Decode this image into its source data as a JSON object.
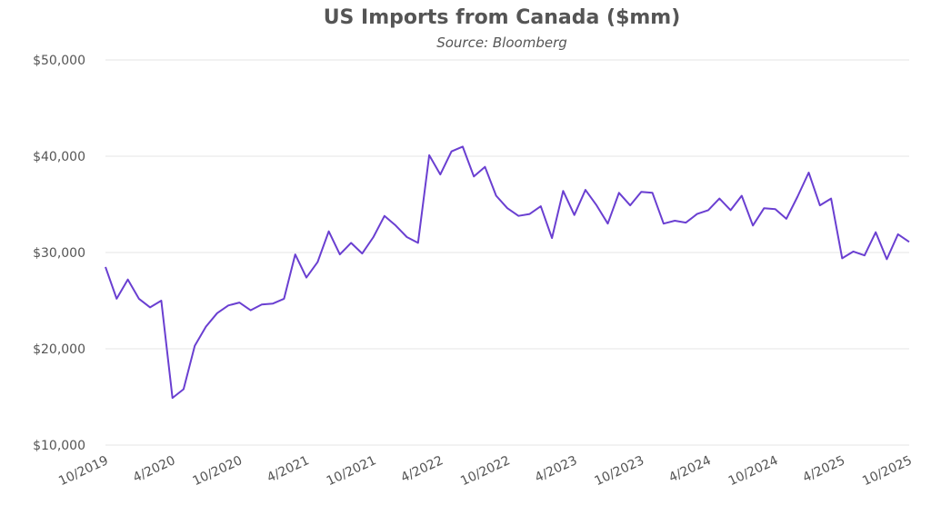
{
  "chart_data": {
    "type": "line",
    "title": "US Imports from Canada ($mm)",
    "subtitle": "Source: Bloomberg",
    "xlabel": "",
    "ylabel": "",
    "ylim": [
      10000,
      50000
    ],
    "yticks": [
      10000,
      20000,
      30000,
      40000,
      50000
    ],
    "ytick_labels": [
      "$10,000",
      "$20,000",
      "$30,000",
      "$40,000",
      "$50,000"
    ],
    "xtick_labels": [
      "10/2019",
      "4/2020",
      "10/2020",
      "4/2021",
      "10/2021",
      "4/2022",
      "10/2022",
      "4/2023",
      "10/2023",
      "4/2024",
      "10/2024",
      "4/2025",
      "10/2025"
    ],
    "grid": true,
    "line_color": "#6a3fd1",
    "x": [
      "2019-10",
      "2019-11",
      "2019-12",
      "2020-01",
      "2020-02",
      "2020-03",
      "2020-04",
      "2020-05",
      "2020-06",
      "2020-07",
      "2020-08",
      "2020-09",
      "2020-10",
      "2020-11",
      "2020-12",
      "2021-01",
      "2021-02",
      "2021-03",
      "2021-04",
      "2021-05",
      "2021-06",
      "2021-07",
      "2021-08",
      "2021-09",
      "2021-10",
      "2021-11",
      "2021-12",
      "2022-01",
      "2022-02",
      "2022-03",
      "2022-04",
      "2022-05",
      "2022-06",
      "2022-07",
      "2022-08",
      "2022-09",
      "2022-10",
      "2022-11",
      "2022-12",
      "2023-01",
      "2023-02",
      "2023-03",
      "2023-04",
      "2023-05",
      "2023-06",
      "2023-07",
      "2023-08",
      "2023-09",
      "2023-10",
      "2023-11",
      "2023-12",
      "2024-01",
      "2024-02",
      "2024-03",
      "2024-04",
      "2024-05",
      "2024-06",
      "2024-07",
      "2024-08",
      "2024-09",
      "2024-10",
      "2024-11",
      "2024-12",
      "2025-01",
      "2025-02",
      "2025-03",
      "2025-04",
      "2025-05",
      "2025-06",
      "2025-07",
      "2025-08",
      "2025-09",
      "2025-10"
    ],
    "values": [
      28500,
      25200,
      27200,
      25200,
      24300,
      25000,
      14900,
      15800,
      20300,
      22300,
      23700,
      24500,
      24800,
      24000,
      24600,
      24700,
      25200,
      29800,
      27400,
      29000,
      32200,
      29800,
      31000,
      29900,
      31600,
      33800,
      32800,
      31600,
      31000,
      40100,
      38100,
      40500,
      41000,
      37900,
      38900,
      35900,
      34600,
      33800,
      34000,
      34800,
      31500,
      36400,
      33900,
      36500,
      34900,
      33000,
      36200,
      34900,
      36300,
      36200,
      33000,
      33300,
      33100,
      34000,
      34400,
      35600,
      34400,
      35900,
      32800,
      34600,
      34500,
      33500,
      35800,
      38300,
      34900,
      35600,
      29400,
      30100,
      29700,
      32100,
      29300,
      31900,
      31100
    ]
  }
}
